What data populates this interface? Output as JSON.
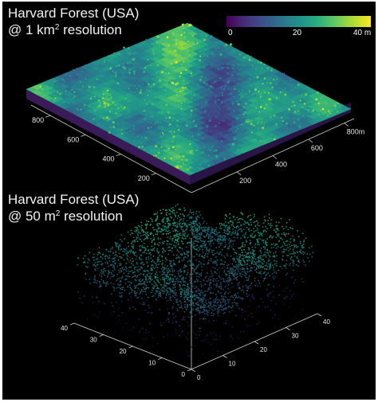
{
  "top_panel": {
    "title_line1": "Harvard Forest (USA)",
    "title_line2_prefix": "@ 1 km",
    "title_line2_sup": "2",
    "title_line2_suffix": " resolution",
    "left_axis_ticks": [
      "800",
      "600",
      "400",
      "200"
    ],
    "right_axis_ticks": [
      "200",
      "400",
      "600",
      "800m"
    ]
  },
  "colorbar": {
    "tick_0": "0",
    "tick_20": "20",
    "tick_40": "40 m",
    "colormap": [
      "#440154",
      "#472d7b",
      "#3b528b",
      "#2c728e",
      "#21918c",
      "#28ae80",
      "#5ec962",
      "#addc30",
      "#fde725"
    ]
  },
  "bottom_panel": {
    "title_line1": "Harvard Forest (USA)",
    "title_line2_prefix": "@ 50 m",
    "title_line2_sup": "2",
    "title_line2_suffix": " resolution",
    "left_axis_ticks": [
      "40",
      "30",
      "20",
      "10",
      "0"
    ],
    "right_axis_ticks": [
      "0",
      "10",
      "20",
      "30",
      "40"
    ]
  }
}
